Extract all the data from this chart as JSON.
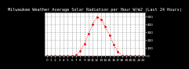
{
  "title": "Milwaukee Weather Average Solar Radiation per Hour W/m2 (Last 24 Hours)",
  "x": [
    0,
    1,
    2,
    3,
    4,
    5,
    6,
    7,
    8,
    9,
    10,
    11,
    12,
    13,
    14,
    15,
    16,
    17,
    18,
    19,
    20,
    21,
    22,
    23
  ],
  "y": [
    0,
    0,
    0,
    0,
    0,
    0,
    0,
    10,
    60,
    150,
    280,
    400,
    490,
    460,
    370,
    260,
    140,
    50,
    5,
    0,
    0,
    0,
    0,
    0
  ],
  "line_color": "#ff0000",
  "bg_color": "#000000",
  "plot_bg": "#ffffff",
  "ylim": [
    0,
    550
  ],
  "xlim": [
    -0.5,
    23.5
  ],
  "yticks": [
    0,
    100,
    200,
    300,
    400,
    500
  ],
  "ytick_labels": [
    "0",
    "100",
    "200",
    "300",
    "400",
    "500"
  ],
  "xtick_labels": [
    "0",
    "1",
    "2",
    "3",
    "4",
    "5",
    "6",
    "7",
    "8",
    "9",
    "10",
    "11",
    "12",
    "13",
    "14",
    "15",
    "16",
    "17",
    "18",
    "19",
    "20",
    "21",
    "22",
    "23"
  ],
  "grid_color": "#888888",
  "title_fontsize": 3.8,
  "tick_fontsize": 3.0,
  "right_axis": true
}
